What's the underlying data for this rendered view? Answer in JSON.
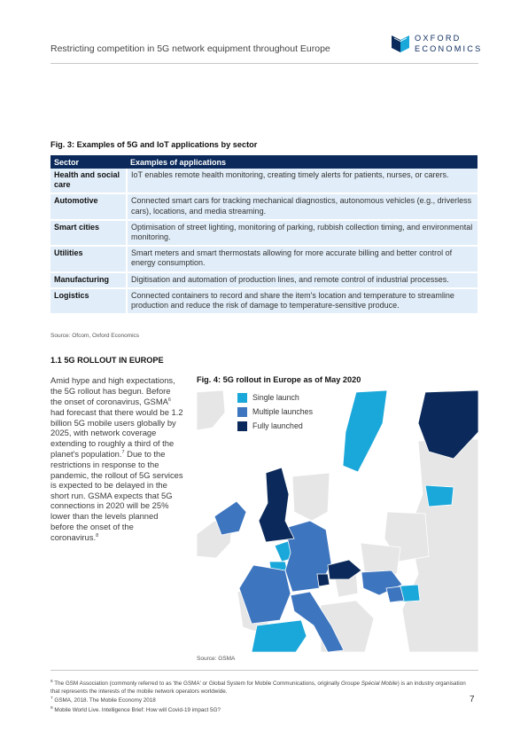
{
  "header": {
    "title": "Restricting competition in 5G network equipment throughout Europe",
    "logo_line1": "OXFORD",
    "logo_line2": "ECONOMICS"
  },
  "figure3": {
    "title": "Fig. 3: Examples of 5G and IoT applications by sector",
    "columns": [
      "Sector",
      "Examples of applications"
    ],
    "rows": [
      {
        "sector": "Health and social care",
        "apps": "IoT enables remote health monitoring, creating timely alerts for patients, nurses, or carers."
      },
      {
        "sector": "Automotive",
        "apps": "Connected smart cars for tracking mechanical diagnostics, autonomous vehicles (e.g., driverless cars), locations, and media streaming."
      },
      {
        "sector": "Smart cities",
        "apps": "Optimisation of street lighting, monitoring of parking, rubbish collection timing, and environmental monitoring."
      },
      {
        "sector": "Utilities",
        "apps": "Smart meters and smart thermostats allowing for more accurate billing and better control of energy consumption."
      },
      {
        "sector": "Manufacturing",
        "apps": "Digitisation and automation of production lines, and remote control of industrial processes."
      },
      {
        "sector": "Logistics",
        "apps": "Connected containers to record and share the item's location and temperature to streamline production and reduce the risk of damage to temperature-sensitive produce."
      }
    ],
    "source": "Source: Ofcom, Oxford Economics"
  },
  "section": {
    "heading": "1.1 5G ROLLOUT IN EUROPE",
    "text_1": "Amid hype and high expectations, the 5G rollout has begun. Before the onset of coronavirus, GSMA",
    "ref_6": "6",
    "text_2": " had forecast that there would be 1.2 billion 5G mobile users globally by 2025, with network coverage extending to roughly a third of the planet's population.",
    "ref_7": "7",
    "text_3": " Due to the restrictions in response to the pandemic, the rollout of 5G services is expected to be delayed in the short run. GSMA expects that 5G connections in 2020 will be 25% lower than the levels planned before the onset of the coronavirus.",
    "ref_8": "8"
  },
  "figure4": {
    "title": "Fig. 4: 5G rollout in Europe as of May 2020",
    "legend": [
      {
        "label": "Single launch",
        "color": "#1aa7d9"
      },
      {
        "label": "Multiple launches",
        "color": "#3d75bf"
      },
      {
        "label": "Fully launched",
        "color": "#0b2a5b"
      }
    ],
    "colors": {
      "none": "#e6e6e6",
      "single": "#1aa7d9",
      "multiple": "#3d75bf",
      "full": "#0b2a5b"
    },
    "source": "Source: GSMA"
  },
  "footnotes": {
    "fn6_num": "6",
    "fn6_a": " The GSM Association (commonly referred to as 'the GSMA' or Global System for Mobile Communications, originally ",
    "fn6_italic": "Groupe Spécial Mobile",
    "fn6_b": ") is an industry organisation that represents the interests of the mobile network operators worldwide.",
    "fn7_num": "7",
    "fn7": " GSMA, 2018. The Mobile Economy 2018",
    "fn8_num": "8",
    "fn8": " Mobile World Live. Intelligence Brief: How will Covid-19 impact 5G?"
  },
  "page_number": "7"
}
